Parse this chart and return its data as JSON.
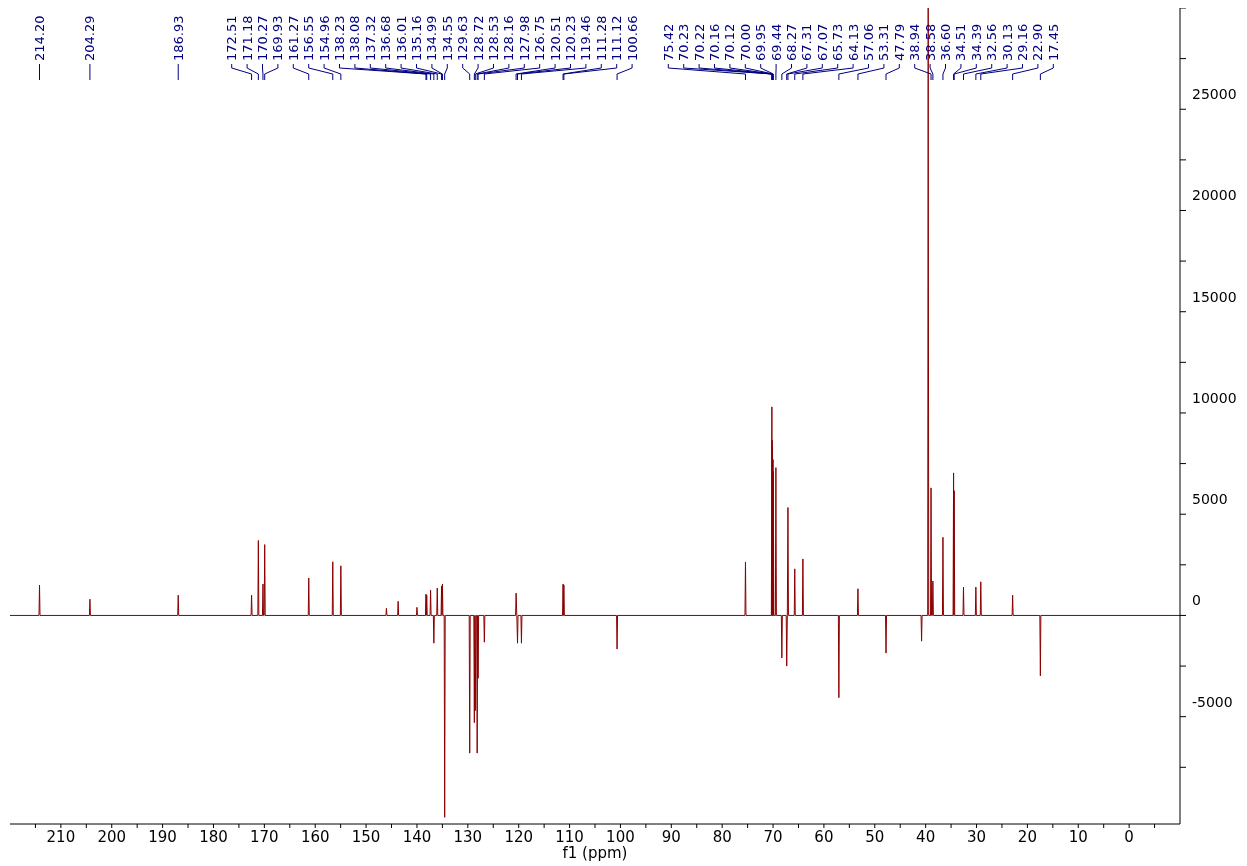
{
  "chart_data": {
    "type": "line",
    "xlabel": "f1 (ppm)",
    "color": "#8b0000",
    "xlim": [
      220,
      -10
    ],
    "ylim": [
      -10300,
      30000
    ],
    "xticks": [
      {
        "value": 215,
        "label": null
      },
      210,
      {
        "value": 205,
        "label": null
      },
      200,
      {
        "value": 195,
        "label": null
      },
      190,
      {
        "value": 185,
        "label": null
      },
      180,
      {
        "value": 175,
        "label": null
      },
      170,
      {
        "value": 165,
        "label": null
      },
      160,
      {
        "value": 155,
        "label": null
      },
      150,
      {
        "value": 145,
        "label": null
      },
      140,
      {
        "value": 135,
        "label": null
      },
      130,
      {
        "value": 125,
        "label": null
      },
      120,
      {
        "value": 115,
        "label": null
      },
      110,
      {
        "value": 105,
        "label": null
      },
      100,
      {
        "value": 95,
        "label": null
      },
      90,
      {
        "value": 85,
        "label": null
      },
      80,
      {
        "value": 75,
        "label": null
      },
      70,
      {
        "value": 65,
        "label": null
      },
      60,
      {
        "value": 55,
        "label": null
      },
      50,
      {
        "value": 45,
        "label": null
      },
      40,
      {
        "value": 35,
        "label": null
      },
      30,
      {
        "value": 25,
        "label": null
      },
      20,
      {
        "value": 15,
        "label": null
      },
      10,
      {
        "value": 5,
        "label": null
      },
      0,
      {
        "value": -5,
        "label": null
      }
    ],
    "yticks": [
      {
        "value": -7500,
        "label": null
      },
      -5000,
      {
        "value": -2500,
        "label": null
      },
      0,
      {
        "value": 2500,
        "label": null
      },
      5000,
      {
        "value": 7500,
        "label": null
      },
      10000,
      {
        "value": 12500,
        "label": null
      },
      15000,
      {
        "value": 17500,
        "label": null
      },
      20000,
      {
        "value": 22500,
        "label": null
      },
      25000,
      {
        "value": 27500,
        "label": null
      },
      {
        "value": 30000,
        "label": null
      }
    ],
    "x": [
      220,
      214.3,
      214.2,
      214.1,
      204.39,
      204.29,
      204.19,
      187.03,
      186.93,
      186.83,
      172.61,
      172.51,
      172.41,
      171.28,
      171.18,
      171.08,
      170.37,
      170.27,
      170.17,
      170.03,
      169.93,
      169.83,
      161.37,
      161.27,
      161.17,
      156.65,
      156.55,
      156.45,
      155.06,
      154.96,
      154.86,
      146.1,
      146.0,
      145.9,
      143.8,
      143.7,
      143.6,
      140.1,
      140.0,
      139.9,
      138.33,
      138.23,
      138.16,
      138.08,
      137.98,
      137.42,
      137.32,
      137.22,
      136.78,
      136.68,
      136.58,
      136.11,
      136.01,
      135.91,
      135.26,
      135.16,
      135.08,
      134.99,
      134.89,
      134.65,
      134.55,
      134.45,
      129.73,
      129.63,
      129.53,
      128.82,
      128.72,
      128.63,
      128.53,
      128.43,
      128.26,
      128.16,
      128.07,
      127.98,
      127.88,
      126.85,
      126.75,
      126.65,
      120.61,
      120.51,
      120.37,
      120.23,
      120.13,
      119.56,
      119.46,
      119.36,
      111.38,
      111.28,
      111.2,
      111.12,
      111.02,
      100.76,
      100.66,
      100.56,
      75.52,
      75.42,
      75.32,
      70.33,
      70.23,
      70.22,
      70.19,
      70.16,
      70.14,
      70.12,
      70.06,
      70.0,
      69.97,
      69.95,
      69.85,
      69.54,
      69.44,
      69.34,
      68.37,
      68.27,
      68.17,
      67.41,
      67.31,
      67.19,
      67.07,
      66.97,
      65.83,
      65.73,
      65.63,
      64.23,
      64.13,
      64.03,
      57.16,
      57.06,
      56.96,
      53.41,
      53.31,
      53.21,
      47.89,
      47.79,
      47.69,
      40.9,
      40.8,
      40.7,
      39.6,
      39.5,
      39.4,
      39.04,
      38.94,
      38.84,
      38.68,
      38.58,
      38.48,
      36.7,
      36.6,
      36.5,
      34.61,
      34.51,
      34.45,
      34.39,
      34.29,
      32.66,
      32.56,
      32.46,
      30.23,
      30.13,
      30.03,
      29.26,
      29.16,
      29.06,
      23.0,
      22.9,
      22.8,
      17.55,
      17.45,
      17.35,
      -10
    ],
    "values": [
      0,
      0,
      1500,
      0,
      0,
      800,
      0,
      0,
      1000,
      0,
      0,
      1000,
      0,
      0,
      3700,
      0,
      0,
      1550,
      0,
      0,
      3500,
      0,
      0,
      1850,
      0,
      0,
      2650,
      0,
      0,
      2450,
      0,
      0,
      350,
      0,
      0,
      700,
      0,
      0,
      400,
      0,
      0,
      1050,
      0,
      1000,
      0,
      0,
      1250,
      0,
      0,
      -1370,
      0,
      0,
      1350,
      0,
      0,
      1450,
      0,
      1550,
      0,
      0,
      -9970,
      0,
      0,
      -6800,
      0,
      0,
      -5300,
      0,
      -4700,
      0,
      0,
      -6800,
      0,
      -3100,
      0,
      0,
      -1320,
      0,
      0,
      1100,
      0,
      -1370,
      0,
      0,
      -1370,
      0,
      0,
      1550,
      0,
      1500,
      0,
      0,
      -1660,
      0,
      0,
      2640,
      0,
      0,
      10300,
      9900,
      0,
      8650,
      0,
      8300,
      0,
      7700,
      0,
      7100,
      0,
      0,
      7300,
      0,
      0,
      -2100,
      0,
      0,
      -2500,
      0,
      5330,
      0,
      0,
      2300,
      0,
      0,
      2790,
      0,
      0,
      -4060,
      0,
      0,
      1320,
      0,
      0,
      -1860,
      0,
      0,
      -1270,
      0,
      0,
      30000,
      0,
      0,
      6300,
      0,
      0,
      1700,
      0,
      0,
      3860,
      0,
      0,
      7040,
      0,
      6160,
      0,
      0,
      1400,
      0,
      0,
      1400,
      0,
      0,
      1660,
      0,
      0,
      1000,
      0,
      0,
      -2980,
      0,
      0
    ],
    "annotations": [
      {
        "text": "214.20",
        "x": 214.2
      },
      {
        "text": "204.29",
        "x": 204.29
      },
      {
        "text": "186.93",
        "x": 186.93
      },
      {
        "text": "172.51",
        "x": 172.51
      },
      {
        "text": "171.18",
        "x": 171.18
      },
      {
        "text": "170.27",
        "x": 170.27
      },
      {
        "text": "169.93",
        "x": 169.93
      },
      {
        "text": "161.27",
        "x": 161.27
      },
      {
        "text": "156.55",
        "x": 156.55
      },
      {
        "text": "154.96",
        "x": 154.96
      },
      {
        "text": "138.23",
        "x": 138.23
      },
      {
        "text": "138.08",
        "x": 138.08
      },
      {
        "text": "137.32",
        "x": 137.32
      },
      {
        "text": "136.68",
        "x": 136.68
      },
      {
        "text": "136.01",
        "x": 136.01
      },
      {
        "text": "135.16",
        "x": 135.16
      },
      {
        "text": "134.99",
        "x": 134.99
      },
      {
        "text": "134.55",
        "x": 134.55
      },
      {
        "text": "129.63",
        "x": 129.63
      },
      {
        "text": "128.72",
        "x": 128.72
      },
      {
        "text": "128.53",
        "x": 128.53
      },
      {
        "text": "128.16",
        "x": 128.16
      },
      {
        "text": "127.98",
        "x": 127.98
      },
      {
        "text": "126.75",
        "x": 126.75
      },
      {
        "text": "120.51",
        "x": 120.51
      },
      {
        "text": "120.23",
        "x": 120.23
      },
      {
        "text": "119.46",
        "x": 119.46
      },
      {
        "text": "111.28",
        "x": 111.28
      },
      {
        "text": "111.12",
        "x": 111.12
      },
      {
        "text": "100.66",
        "x": 100.66
      },
      {
        "text": "75.42",
        "x": 75.42
      },
      {
        "text": "70.23",
        "x": 70.23
      },
      {
        "text": "70.22",
        "x": 70.22
      },
      {
        "text": "70.16",
        "x": 70.16
      },
      {
        "text": "70.12",
        "x": 70.12
      },
      {
        "text": "70.00",
        "x": 70.0
      },
      {
        "text": "69.95",
        "x": 69.95
      },
      {
        "text": "69.44",
        "x": 69.44
      },
      {
        "text": "68.27",
        "x": 68.27
      },
      {
        "text": "67.31",
        "x": 67.31
      },
      {
        "text": "67.07",
        "x": 67.07
      },
      {
        "text": "65.73",
        "x": 65.73
      },
      {
        "text": "64.13",
        "x": 64.13
      },
      {
        "text": "57.06",
        "x": 57.06
      },
      {
        "text": "53.31",
        "x": 53.31
      },
      {
        "text": "47.79",
        "x": 47.79
      },
      {
        "text": "38.94",
        "x": 38.94
      },
      {
        "text": "38.58",
        "x": 38.58
      },
      {
        "text": "36.60",
        "x": 36.6
      },
      {
        "text": "34.51",
        "x": 34.51
      },
      {
        "text": "34.39",
        "x": 34.39
      },
      {
        "text": "32.56",
        "x": 32.56
      },
      {
        "text": "30.13",
        "x": 30.13
      },
      {
        "text": "29.16",
        "x": 29.16
      },
      {
        "text": "22.90",
        "x": 22.9
      },
      {
        "text": "17.45",
        "x": 17.45
      }
    ]
  }
}
